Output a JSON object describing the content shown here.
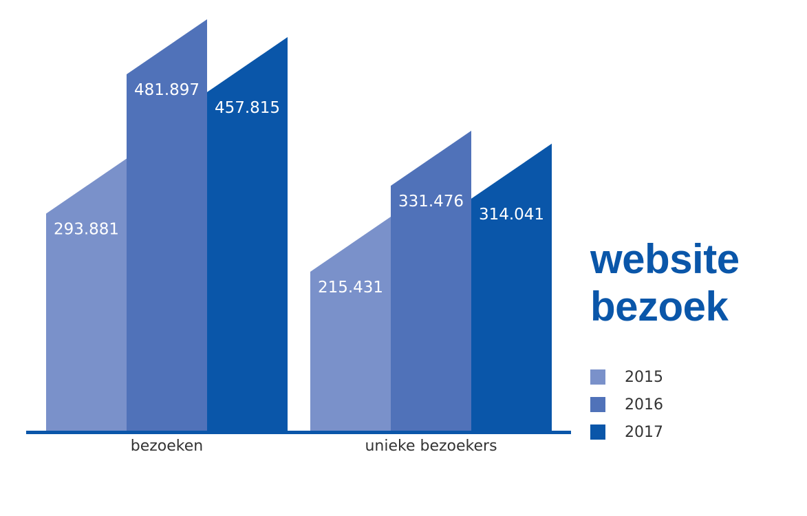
{
  "chart_data": {
    "type": "bar",
    "title_lines": [
      "website",
      "bezoek"
    ],
    "categories": [
      "bezoeken",
      "unieke bezoekers"
    ],
    "series": [
      {
        "name": "2015",
        "values": [
          293881,
          215431
        ],
        "labels": [
          "293.881",
          "215.431"
        ],
        "color": "#7a91ca"
      },
      {
        "name": "2016",
        "values": [
          481897,
          331476
        ],
        "labels": [
          "481.897",
          "331.476"
        ],
        "color": "#5072b9"
      },
      {
        "name": "2017",
        "values": [
          457815,
          314041
        ],
        "labels": [
          "457.815",
          "314.041"
        ],
        "color": "#0a56a9"
      }
    ],
    "grid": false,
    "legend_position": "right"
  },
  "colors": {
    "baseline": "#0a56a9",
    "title": "#0a56a9",
    "data_label": "#ffffff"
  }
}
